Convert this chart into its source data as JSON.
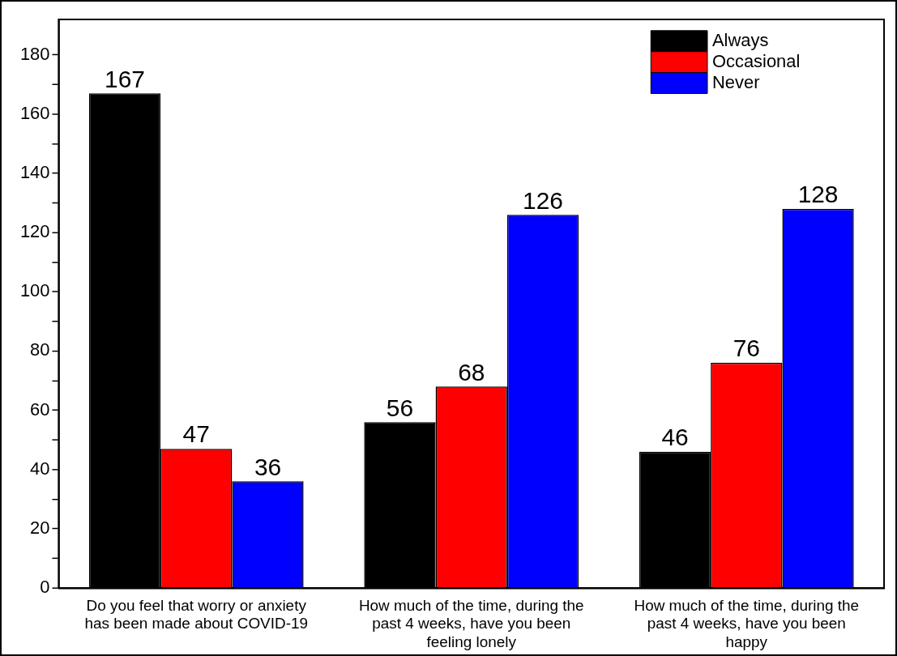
{
  "chart_data": {
    "type": "bar",
    "categories": [
      "Do you feel that worry or anxiety has been made about COVID-19",
      "How much of the time, during the past 4 weeks, have you been feeling lonely",
      "How much of the time, during the past 4 weeks, have you been happy"
    ],
    "series": [
      {
        "name": "Always",
        "color": "#000000",
        "values": [
          167,
          56,
          46
        ]
      },
      {
        "name": "Occasional",
        "color": "#ff0000",
        "values": [
          47,
          68,
          76
        ]
      },
      {
        "name": "Never",
        "color": "#0000ff",
        "values": [
          36,
          126,
          128
        ]
      }
    ],
    "ylim": [
      0,
      192
    ],
    "yticks": [
      0,
      {
        "value": 10,
        "label": null
      },
      20,
      {
        "value": 30,
        "label": null
      },
      40,
      {
        "value": 50,
        "label": null
      },
      60,
      {
        "value": 70,
        "label": null
      },
      80,
      {
        "value": 90,
        "label": null
      },
      100,
      {
        "value": 110,
        "label": null
      },
      120,
      {
        "value": 130,
        "label": null
      },
      140,
      {
        "value": 150,
        "label": null
      },
      160,
      {
        "value": 170,
        "label": null
      },
      180
    ],
    "data_labels": true,
    "grid": false,
    "legend": "top right"
  }
}
